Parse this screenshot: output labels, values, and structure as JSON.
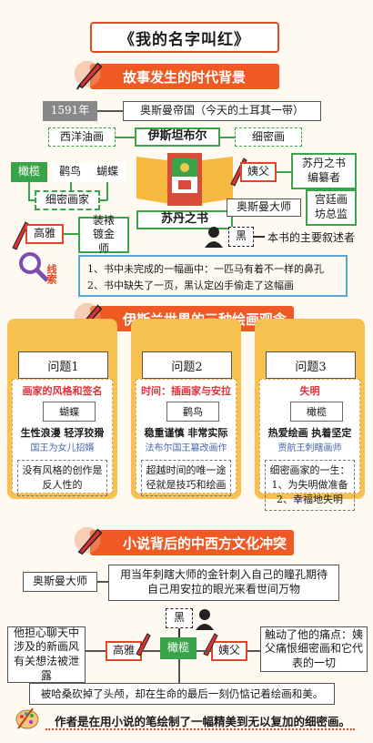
{
  "title": "《我的名字叫红》",
  "section1": {
    "heading": "故事发生的时代背景",
    "year": "1591年",
    "empire": "奥斯曼帝国（今天的土耳其一带）",
    "city": "伊斯坦布尔",
    "western": "西洋油画",
    "miniature": "细密画",
    "book": "苏丹之书",
    "olive": "橄榄",
    "stork": "鹳鸟",
    "butterfly": "蝴蝶",
    "painters": "细密画家",
    "enishte": "姨父",
    "enishte_role": "苏丹之书编纂者",
    "master": "奥斯曼大师",
    "court": "宫廷画坊总监",
    "elegant": "高雅",
    "elegant_role": "装裱镀金师",
    "black": "黑",
    "narrator": "本书的主要叙述者",
    "clue_label": "线索",
    "clues": [
      "1、书中未完成的一幅画中：一匹马有着不一样的鼻孔",
      "2、书中缺失了一页，黑认定凶手偷走了这幅画"
    ]
  },
  "section2": {
    "heading": "伊斯兰世界的三种绘画观念",
    "columns": [
      {
        "q": "问题1",
        "topic": "画家的风格和签名",
        "name": "蝴蝶",
        "desc": "生性浪漫 轻浮狡猾",
        "note": "国王为女儿招婿",
        "box": "没有风格的创作是反人性的"
      },
      {
        "q": "问题2",
        "topic": "时间：插画家与安拉",
        "name": "鹳鸟",
        "desc": "稳重谨慎 非常实际",
        "note": "法布尔国王篡改画作",
        "box": "超越时间的唯一途径就是技巧和绘画"
      },
      {
        "q": "问题3",
        "topic": "失明",
        "name": "橄榄",
        "desc": "热爱绘画 执着坚定",
        "note": "贾航王刺瞎画师",
        "box": "细密画家的一生：1、为失明做准备 2、幸福地失明"
      }
    ]
  },
  "section3": {
    "heading": "小说背后的中西方文化冲突",
    "master": "奥斯曼大师",
    "master_desc": "用当年刺瞎大师的金针刺入自己的瞳孔期待自己用安拉的眼光来看世间万物",
    "black": "黑",
    "elegant": "高雅",
    "olive": "橄榄",
    "enishte": "姨父",
    "left_note": "他担心聊天中涉及的新画风有关想法被泄露",
    "right_note": "触动了他的痛点：姨父痛恨细密画和它代表的一切",
    "bottom": "被哈桑砍掉了头颅，却在生命的最后一刻仍惦记着绘画和美。",
    "footer": "作者是在用小说的笔绘制了一幅精美到无以复加的细密画。"
  }
}
